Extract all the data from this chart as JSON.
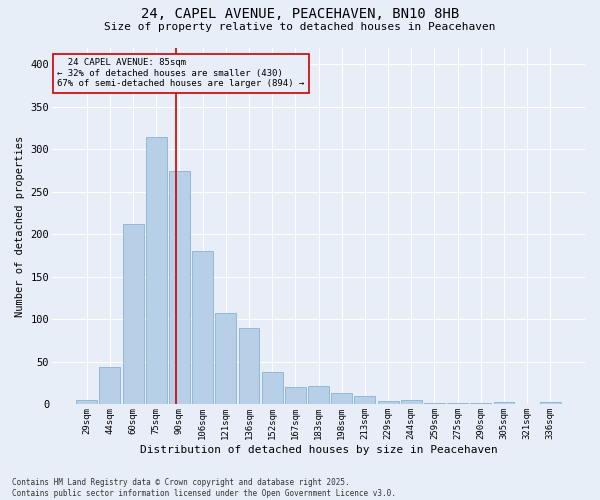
{
  "title": "24, CAPEL AVENUE, PEACEHAVEN, BN10 8HB",
  "subtitle": "Size of property relative to detached houses in Peacehaven",
  "xlabel": "Distribution of detached houses by size in Peacehaven",
  "ylabel": "Number of detached properties",
  "categories": [
    "29sqm",
    "44sqm",
    "60sqm",
    "75sqm",
    "90sqm",
    "106sqm",
    "121sqm",
    "136sqm",
    "152sqm",
    "167sqm",
    "183sqm",
    "198sqm",
    "213sqm",
    "229sqm",
    "244sqm",
    "259sqm",
    "275sqm",
    "290sqm",
    "305sqm",
    "321sqm",
    "336sqm"
  ],
  "values": [
    5,
    44,
    212,
    315,
    275,
    180,
    108,
    90,
    38,
    20,
    22,
    13,
    10,
    4,
    5,
    2,
    2,
    2,
    3,
    0,
    3
  ],
  "bar_color": "#b8cfe8",
  "bar_edge_color": "#7aaad0",
  "marker_label": "24 CAPEL AVENUE: 85sqm",
  "marker_pct_smaller": "32% of detached houses are smaller (430)",
  "marker_pct_larger": "67% of semi-detached houses are larger (894)",
  "vline_color": "#cc0000",
  "background_color": "#e8eef8",
  "grid_color": "#ffffff",
  "footnote1": "Contains HM Land Registry data © Crown copyright and database right 2025.",
  "footnote2": "Contains public sector information licensed under the Open Government Licence v3.0.",
  "ylim": [
    0,
    420
  ],
  "yticks": [
    0,
    50,
    100,
    150,
    200,
    250,
    300,
    350,
    400
  ],
  "vline_x": 3.85
}
